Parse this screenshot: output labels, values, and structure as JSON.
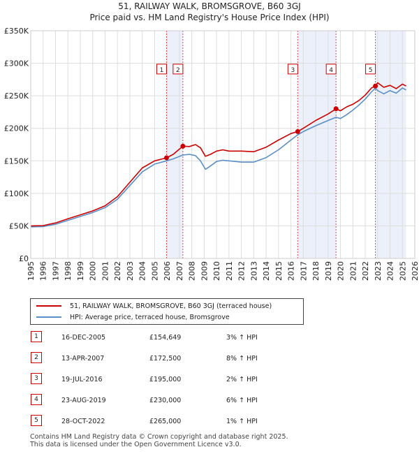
{
  "title": {
    "line1": "51, RAILWAY WALK, BROMSGROVE, B60 3GJ",
    "line2": "Price paid vs. HM Land Registry's House Price Index (HPI)"
  },
  "chart_data": {
    "type": "line",
    "title": "51, RAILWAY WALK, BROMSGROVE, B60 3GJ - Price paid vs. HM Land Registry's House Price Index (HPI)",
    "xlabel": "",
    "ylabel": "",
    "xlim": [
      1995,
      2026
    ],
    "ylim": [
      0,
      350000
    ],
    "x_ticks": [
      "1995",
      "1996",
      "1997",
      "1998",
      "1999",
      "2000",
      "2001",
      "2002",
      "2003",
      "2004",
      "2005",
      "2006",
      "2007",
      "2008",
      "2009",
      "2010",
      "2011",
      "2012",
      "2013",
      "2014",
      "2015",
      "2016",
      "2017",
      "2018",
      "2019",
      "2020",
      "2021",
      "2022",
      "2023",
      "2024",
      "2025",
      "2026"
    ],
    "y_ticks": [
      {
        "value": 0,
        "label": "£0"
      },
      {
        "value": 50000,
        "label": "£50K"
      },
      {
        "value": 100000,
        "label": "£100K"
      },
      {
        "value": 150000,
        "label": "£150K"
      },
      {
        "value": 200000,
        "label": "£200K"
      },
      {
        "value": 250000,
        "label": "£250K"
      },
      {
        "value": 300000,
        "label": "£300K"
      },
      {
        "value": 350000,
        "label": "£350K"
      }
    ],
    "grid": true,
    "series": [
      {
        "name": "51, RAILWAY WALK, BROMSGROVE, B60 3GJ (terraced house)",
        "color": "#cc0000",
        "points": [
          [
            1995.0,
            50000
          ],
          [
            1996.0,
            50500
          ],
          [
            1997.0,
            54500
          ],
          [
            1998.0,
            61000
          ],
          [
            1999.0,
            67000
          ],
          [
            2000.0,
            73000
          ],
          [
            2001.0,
            81000
          ],
          [
            2002.0,
            95000
          ],
          [
            2003.0,
            117000
          ],
          [
            2004.0,
            139000
          ],
          [
            2005.0,
            150000
          ],
          [
            2005.96,
            154649
          ],
          [
            2006.5,
            160000
          ],
          [
            2007.28,
            172500
          ],
          [
            2007.8,
            172000
          ],
          [
            2008.3,
            175000
          ],
          [
            2008.7,
            170000
          ],
          [
            2009.1,
            157000
          ],
          [
            2009.5,
            160000
          ],
          [
            2010.0,
            165000
          ],
          [
            2010.5,
            167000
          ],
          [
            2011.0,
            165000
          ],
          [
            2012.0,
            165000
          ],
          [
            2013.0,
            164000
          ],
          [
            2014.0,
            171000
          ],
          [
            2015.0,
            182000
          ],
          [
            2016.0,
            192000
          ],
          [
            2016.55,
            195000
          ],
          [
            2017.0,
            200000
          ],
          [
            2018.0,
            212000
          ],
          [
            2019.0,
            222000
          ],
          [
            2019.64,
            230000
          ],
          [
            2020.0,
            227000
          ],
          [
            2020.5,
            233000
          ],
          [
            2021.0,
            237000
          ],
          [
            2021.5,
            243000
          ],
          [
            2022.0,
            251000
          ],
          [
            2022.5,
            262000
          ],
          [
            2022.82,
            265000
          ],
          [
            2023.0,
            270000
          ],
          [
            2023.5,
            263000
          ],
          [
            2024.0,
            266000
          ],
          [
            2024.5,
            261000
          ],
          [
            2025.0,
            268000
          ],
          [
            2025.3,
            265000
          ]
        ]
      },
      {
        "name": "HPI: Average price, terraced house, Bromsgrove",
        "color": "#5b8fc7",
        "points": [
          [
            1995.0,
            48500
          ],
          [
            1996.0,
            49000
          ],
          [
            1997.0,
            52500
          ],
          [
            1998.0,
            58500
          ],
          [
            1999.0,
            64500
          ],
          [
            2000.0,
            70500
          ],
          [
            2001.0,
            78000
          ],
          [
            2002.0,
            91000
          ],
          [
            2003.0,
            112000
          ],
          [
            2004.0,
            133000
          ],
          [
            2005.0,
            145000
          ],
          [
            2005.96,
            150000
          ],
          [
            2006.5,
            153000
          ],
          [
            2007.28,
            159000
          ],
          [
            2007.8,
            160000
          ],
          [
            2008.3,
            158000
          ],
          [
            2008.7,
            150000
          ],
          [
            2009.1,
            137000
          ],
          [
            2009.5,
            142000
          ],
          [
            2010.0,
            149000
          ],
          [
            2010.5,
            151000
          ],
          [
            2011.0,
            150000
          ],
          [
            2012.0,
            148000
          ],
          [
            2013.0,
            148000
          ],
          [
            2014.0,
            155000
          ],
          [
            2015.0,
            167000
          ],
          [
            2016.0,
            182000
          ],
          [
            2016.55,
            190000
          ],
          [
            2017.0,
            195000
          ],
          [
            2018.0,
            204000
          ],
          [
            2019.0,
            212000
          ],
          [
            2019.64,
            217000
          ],
          [
            2020.0,
            215000
          ],
          [
            2020.5,
            221000
          ],
          [
            2021.0,
            228000
          ],
          [
            2021.5,
            236000
          ],
          [
            2022.0,
            245000
          ],
          [
            2022.5,
            256000
          ],
          [
            2022.82,
            262000
          ],
          [
            2023.0,
            258000
          ],
          [
            2023.5,
            253000
          ],
          [
            2024.0,
            258000
          ],
          [
            2024.5,
            254000
          ],
          [
            2025.0,
            262000
          ],
          [
            2025.3,
            259000
          ]
        ]
      }
    ],
    "sales": [
      {
        "id": "1",
        "x": 2005.96,
        "price": 154649
      },
      {
        "id": "2",
        "x": 2007.28,
        "price": 172500
      },
      {
        "id": "3",
        "x": 2016.55,
        "price": 195000
      },
      {
        "id": "4",
        "x": 2019.64,
        "price": 230000
      },
      {
        "id": "5",
        "x": 2022.82,
        "price": 265000
      }
    ],
    "shaded_ranges": [
      [
        2005.96,
        2007.28
      ],
      [
        2016.55,
        2019.64
      ],
      [
        2022.82,
        2025.3
      ]
    ],
    "marker_box_y_value": 290000
  },
  "legend": {
    "property": "51, RAILWAY WALK, BROMSGROVE, B60 3GJ (terraced house)",
    "hpi": "HPI: Average price, terraced house, Bromsgrove"
  },
  "sales_table": [
    {
      "num": "1",
      "date": "16-DEC-2005",
      "price": "£154,649",
      "hpi": "3% ↑ HPI"
    },
    {
      "num": "2",
      "date": "13-APR-2007",
      "price": "£172,500",
      "hpi": "8% ↑ HPI"
    },
    {
      "num": "3",
      "date": "19-JUL-2016",
      "price": "£195,000",
      "hpi": "2% ↑ HPI"
    },
    {
      "num": "4",
      "date": "23-AUG-2019",
      "price": "£230,000",
      "hpi": "6% ↑ HPI"
    },
    {
      "num": "5",
      "date": "28-OCT-2022",
      "price": "£265,000",
      "hpi": "1% ↑ HPI"
    }
  ],
  "footer": {
    "line1": "Contains HM Land Registry data © Crown copyright and database right 2025.",
    "line2": "This data is licensed under the Open Government Licence v3.0."
  },
  "colors": {
    "property_line": "#cc0000",
    "hpi_line": "#5b8fc7",
    "shade": "#dde6f7",
    "grid": "#dddddd",
    "marker_border": "#cc0000"
  }
}
